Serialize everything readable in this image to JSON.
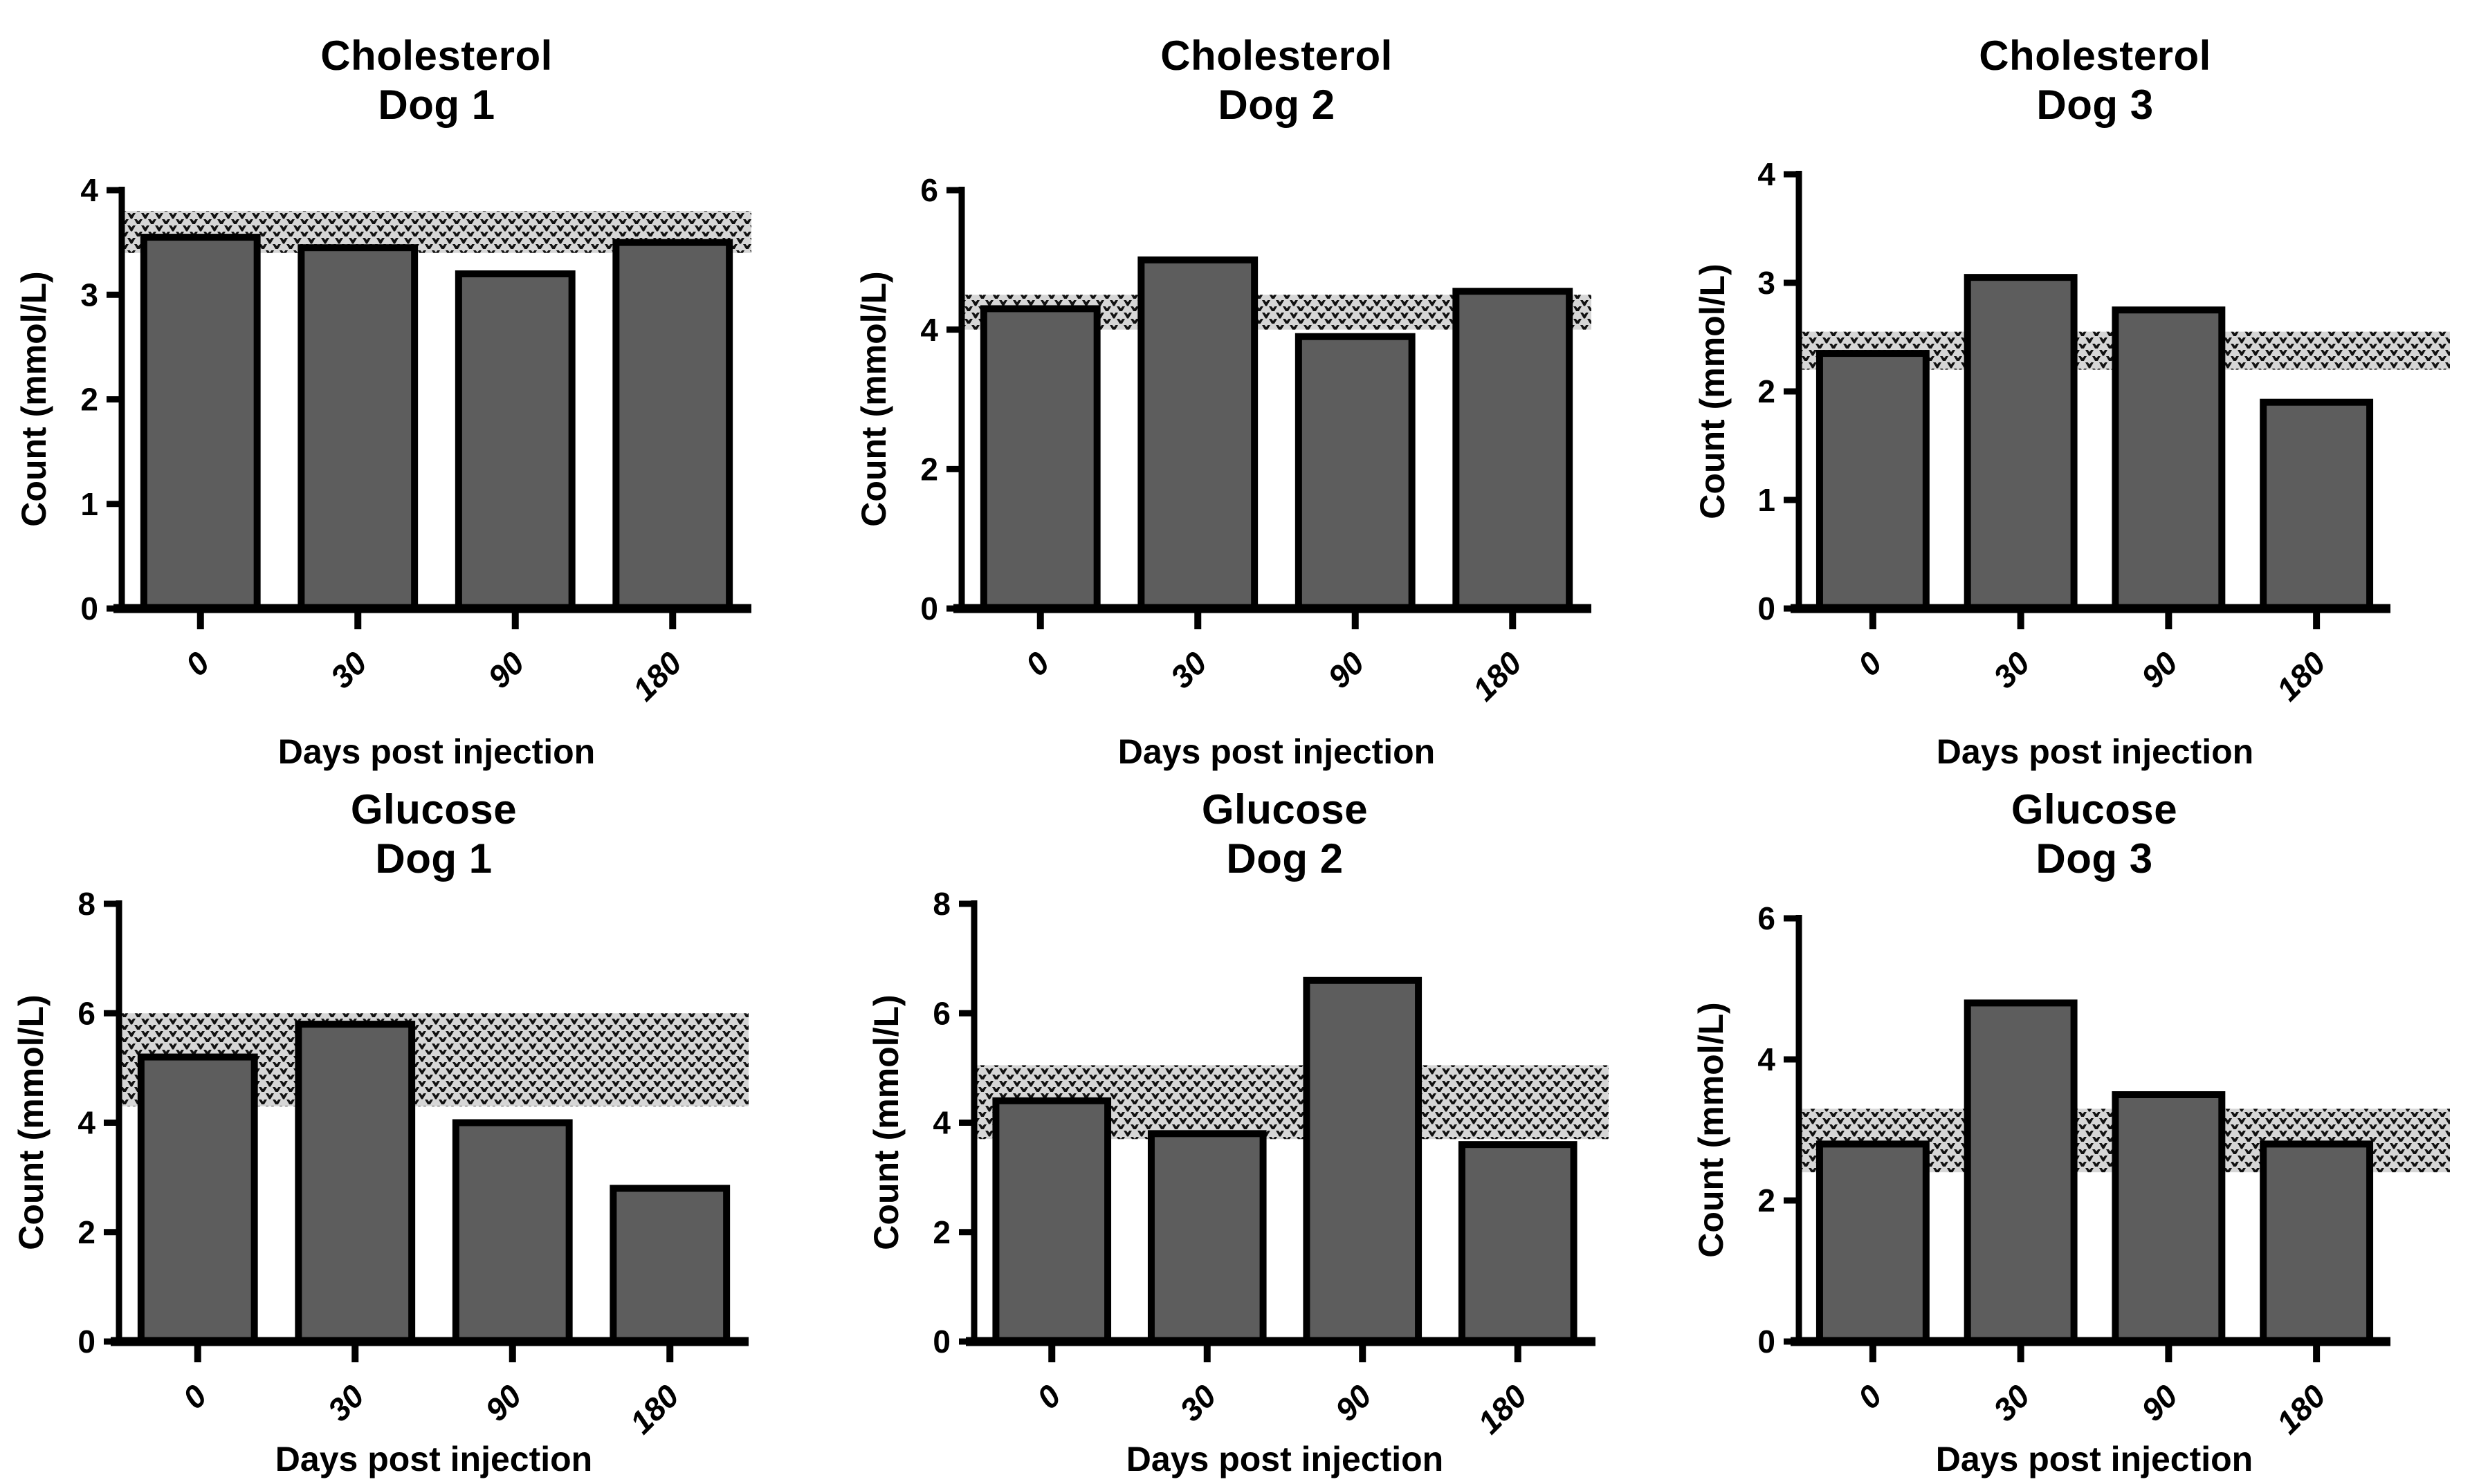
{
  "figure": {
    "description": "Six bar charts in a 2x3 grid showing cholesterol and glucose counts for three dogs over days post injection, each with a stippled reference-range band",
    "rows": 2,
    "cols": 3,
    "background": "#ffffff"
  },
  "colors": {
    "bar_fill": "#5d5d5d",
    "bar_stroke": "#000000",
    "axis": "#000000",
    "text": "#000000",
    "band_background": "#d6d6d6",
    "band_glyph": "#111111"
  },
  "chart_data": [
    {
      "type": "bar",
      "title": "Cholesterol",
      "subtitle": "Dog 1",
      "xlabel": "Days post injection",
      "ylabel": "Count (mmol/L)",
      "categories": [
        "0",
        "30",
        "90",
        "180"
      ],
      "values": [
        3.55,
        3.45,
        3.2,
        3.5
      ],
      "ylim": [
        0,
        4
      ],
      "yticks": [
        0,
        1,
        2,
        3,
        4
      ],
      "reference_band": {
        "low": 3.4,
        "high": 3.8
      }
    },
    {
      "type": "bar",
      "title": "Cholesterol",
      "subtitle": "Dog 2",
      "xlabel": "Days post injection",
      "ylabel": "Count (mmol/L)",
      "categories": [
        "0",
        "30",
        "90",
        "180"
      ],
      "values": [
        4.3,
        5.0,
        3.9,
        4.55
      ],
      "ylim": [
        0,
        6
      ],
      "yticks": [
        0,
        2,
        4,
        6
      ],
      "reference_band": {
        "low": 4.0,
        "high": 4.5
      }
    },
    {
      "type": "bar",
      "title": "Cholesterol",
      "subtitle": "Dog 3",
      "xlabel": "Days post injection",
      "ylabel": "Count (mmol/L)",
      "categories": [
        "0",
        "30",
        "90",
        "180"
      ],
      "values": [
        2.35,
        3.05,
        2.75,
        1.9
      ],
      "ylim": [
        0,
        4
      ],
      "yticks": [
        0,
        1,
        2,
        3,
        4
      ],
      "reference_band": {
        "low": 2.2,
        "high": 2.55
      }
    },
    {
      "type": "bar",
      "title": "Glucose",
      "subtitle": "Dog 1",
      "xlabel": "Days post injection",
      "ylabel": "Count (mmol/L)",
      "categories": [
        "0",
        "30",
        "90",
        "180"
      ],
      "values": [
        5.2,
        5.8,
        4.0,
        2.8
      ],
      "ylim": [
        0,
        8
      ],
      "yticks": [
        0,
        2,
        4,
        6,
        8
      ],
      "reference_band": {
        "low": 4.3,
        "high": 6.0
      }
    },
    {
      "type": "bar",
      "title": "Glucose",
      "subtitle": "Dog 2",
      "xlabel": "Days post injection",
      "ylabel": "Count (mmol/L)",
      "categories": [
        "0",
        "30",
        "90",
        "180"
      ],
      "values": [
        4.4,
        3.8,
        6.6,
        3.6
      ],
      "ylim": [
        0,
        8
      ],
      "yticks": [
        0,
        2,
        4,
        6,
        8
      ],
      "reference_band": {
        "low": 3.7,
        "high": 5.05
      }
    },
    {
      "type": "bar",
      "title": "Glucose",
      "subtitle": "Dog 3",
      "xlabel": "Days post injection",
      "ylabel": "Count (mmol/L)",
      "categories": [
        "0",
        "30",
        "90",
        "180"
      ],
      "values": [
        2.8,
        4.8,
        3.5,
        2.8
      ],
      "ylim": [
        0,
        6
      ],
      "yticks": [
        0,
        2,
        4,
        6
      ],
      "reference_band": {
        "low": 2.4,
        "high": 3.3
      }
    }
  ]
}
